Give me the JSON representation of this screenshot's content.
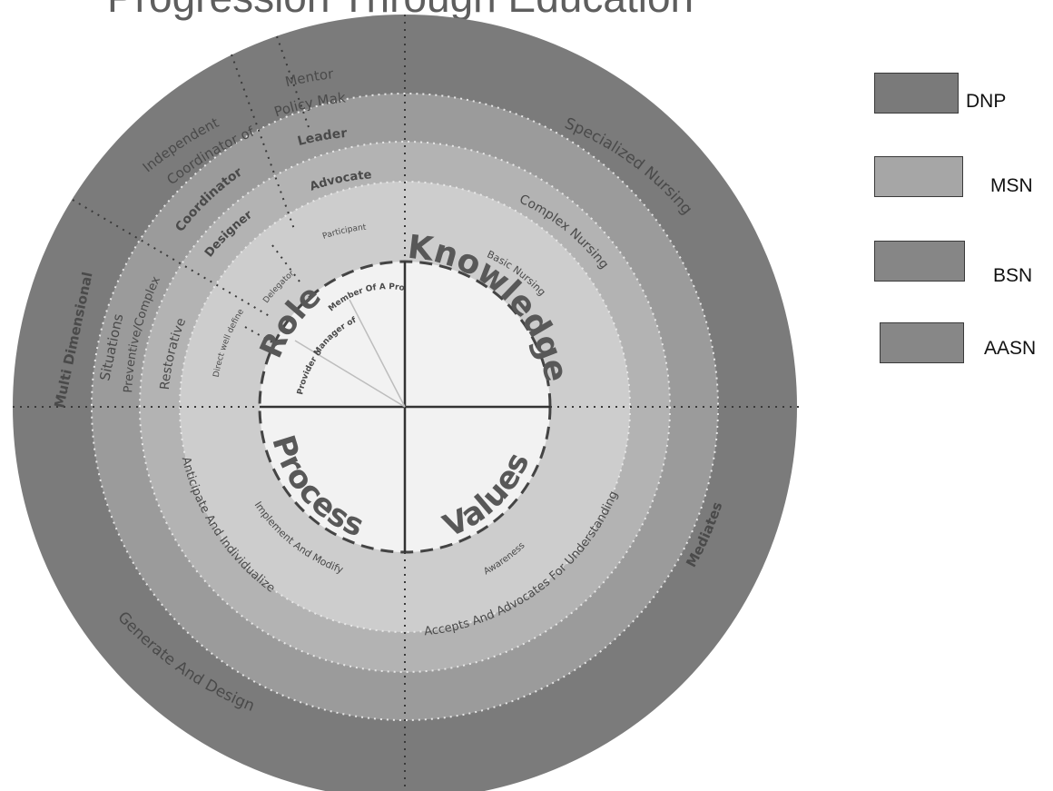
{
  "legend": [
    {
      "label": "DNP",
      "color": "#7a7a7a"
    },
    {
      "label": "MSN",
      "color": "#a6a6a6"
    },
    {
      "label": "BSN",
      "color": "#868686"
    },
    {
      "label": "AASN",
      "color": "#878787"
    }
  ],
  "rings": {
    "dnp": {
      "color": "#7b7b7b"
    },
    "msn": {
      "color": "#9b9b9b"
    },
    "bsn": {
      "color": "#b3b3b3"
    },
    "aasn": {
      "color": "#cdcdcd"
    },
    "core": {
      "color": "#f2f2f2"
    }
  },
  "core": {
    "role": "Role",
    "knowledge": "Knowledge",
    "values": "Values",
    "process": "Process",
    "provider_of_care": "Provider of Care",
    "manager_of_care": "Manager of Care",
    "member_of": "Member Of A Profession"
  },
  "aasn": {
    "direct_defined": "Direct well defined",
    "delegator": "Delegator",
    "participant": "Participant",
    "basic_nursing": "Basic Nursing",
    "awareness": "Awareness",
    "implement": "Implement And Modify"
  },
  "bsn": {
    "restorative": "Restorative",
    "designer": "Designer",
    "advocate": "Advocate",
    "complex_nursing": "Complex Nursing",
    "accepts": "Accepts And Advocates For Understanding",
    "anticipate": "Anticipate And Individualize"
  },
  "msn": {
    "preventive": "Preventive/Complex",
    "coordinator": "Coordinator",
    "leader": "Leader",
    "specialized": "Specialized Nursing"
  },
  "dnp": {
    "multi_dimensional": "Multi Dimensional",
    "situations": "Situations",
    "independent": "Independent",
    "coordinator_care": "Coordinator of Care",
    "mentor": "Mentor",
    "policy_maker": "Policy Maker",
    "mediates": "Mediates",
    "generate": "Generate And Design"
  },
  "title_fragment": "Progression Through Education"
}
